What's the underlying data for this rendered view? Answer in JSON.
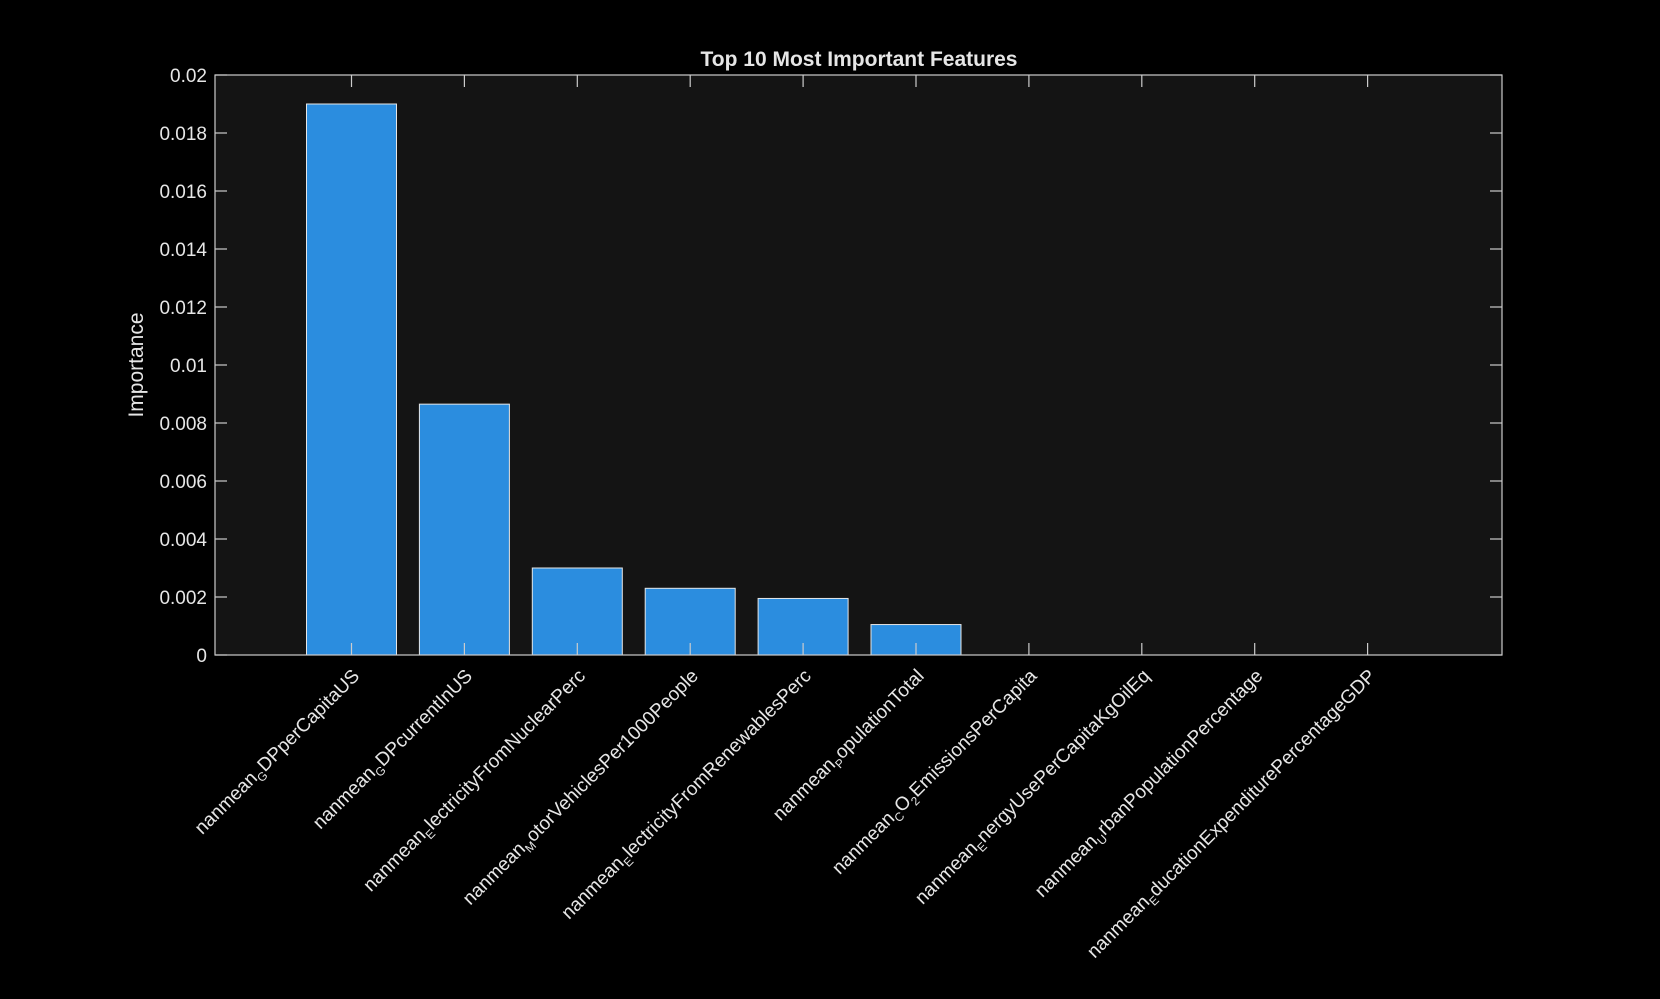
{
  "chart_data": {
    "type": "bar",
    "title": "Top 10 Most Important Features",
    "xlabel": "",
    "ylabel": "Importance",
    "ylim": [
      0,
      0.02
    ],
    "yticks": [
      "0",
      "0.002",
      "0.004",
      "0.006",
      "0.008",
      "0.01",
      "0.012",
      "0.014",
      "0.016",
      "0.018",
      "0.02"
    ],
    "grid": false,
    "categories": [
      {
        "pre": "nanmean",
        "sub": "G",
        "post": "DPperCapitaUS"
      },
      {
        "pre": "nanmean",
        "sub": "G",
        "post": "DPcurrentInUS"
      },
      {
        "pre": "nanmean",
        "sub": "E",
        "post": "lectricityFromNuclearPerc"
      },
      {
        "pre": "nanmean",
        "sub": "M",
        "post": "otorVehiclesPer1000People"
      },
      {
        "pre": "nanmean",
        "sub": "E",
        "post": "lectricityFromRenewablesPerc"
      },
      {
        "pre": "nanmean",
        "sub": "P",
        "post": "opulationTotal"
      },
      {
        "pre": "nanmean",
        "sub": "C",
        "post": "O",
        "sub2": "2",
        "post2": "EmissionsPerCapita"
      },
      {
        "pre": "nanmean",
        "sub": "E",
        "post": "nergyUsePerCapitaKgOilEq"
      },
      {
        "pre": "nanmean",
        "sub": "U",
        "post": "rbanPopulationPercentage"
      },
      {
        "pre": "nanmean",
        "sub": "E",
        "post": "ducationExpenditurePercentageGDP"
      }
    ],
    "values": [
      0.019,
      0.00865,
      0.003,
      0.0023,
      0.00195,
      0.00105,
      0,
      0,
      0,
      0
    ],
    "colors": {
      "bar": "#2b8ddf",
      "bar_edge": "#e6e6e6",
      "axes_bg": "#141414",
      "axes_edge": "#cccccc",
      "page_bg": "#000000",
      "text": "#e6e6e6"
    }
  }
}
